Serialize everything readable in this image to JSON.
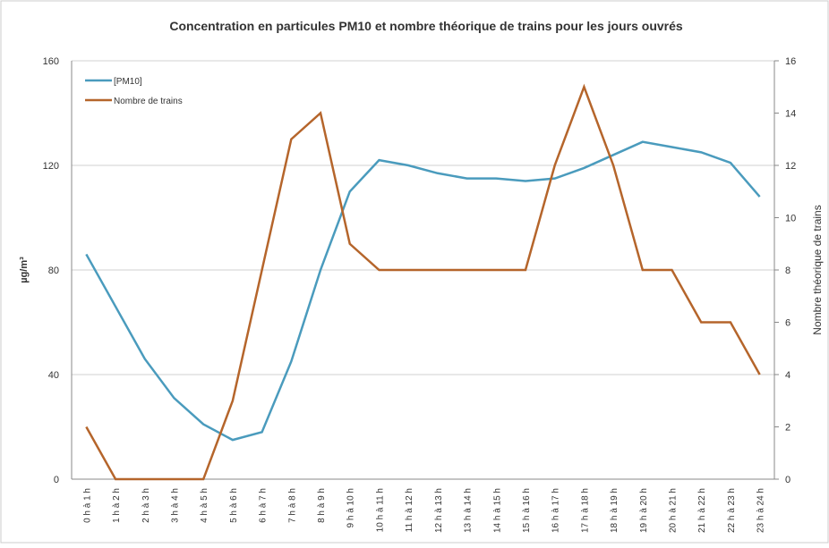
{
  "chart_data": {
    "type": "line",
    "title": "Concentration en particules PM10 et nombre théorique de trains pour les jours ouvrés",
    "y_label": "µg/m³",
    "y2_label": "Nombre théorique de trains",
    "categories": [
      "0 h à 1 h",
      "1 h à 2 h",
      "2 h à 3 h",
      "3 h à 4 h",
      "4 h à 5 h",
      "5 h à 6 h",
      "6 h à 7 h",
      "7 h à 8 h",
      "8 h à 9 h",
      "9 h à 10 h",
      "10 h à 11 h",
      "11 h à 12 h",
      "12 h à 13 h",
      "13 h à 14 h",
      "14 h à 15 h",
      "15 h à 16 h",
      "16 h à 17 h",
      "17 h à 18 h",
      "18 h à 19 h",
      "19 h à 20 h",
      "20 h à 21 h",
      "21 h à 22 h",
      "22 h à 23 h",
      "23 h à 24 h"
    ],
    "series": [
      {
        "name": "[PM10]",
        "color": "#4a9bbd",
        "values": [
          86,
          66,
          46,
          31,
          21,
          15,
          18,
          45,
          80,
          110,
          122,
          120,
          117,
          115,
          115,
          114,
          115,
          119,
          124,
          129,
          127,
          125,
          121,
          108
        ]
      },
      {
        "name": "Nombre de trains",
        "color": "#b5652b",
        "axis": "y2",
        "values": [
          2,
          0,
          0,
          0,
          0,
          3,
          8,
          13,
          14,
          9,
          8,
          8,
          8,
          8,
          8,
          8,
          12,
          15,
          12,
          8,
          8,
          6,
          6,
          4
        ]
      }
    ],
    "ylim": [
      0,
      160
    ],
    "yticks": [
      0,
      40,
      80,
      120,
      160
    ],
    "y2lim": [
      0,
      16
    ],
    "y2ticks": [
      0,
      2,
      4,
      6,
      8,
      10,
      12,
      14,
      16
    ],
    "grid": true,
    "legend": "top-left"
  }
}
